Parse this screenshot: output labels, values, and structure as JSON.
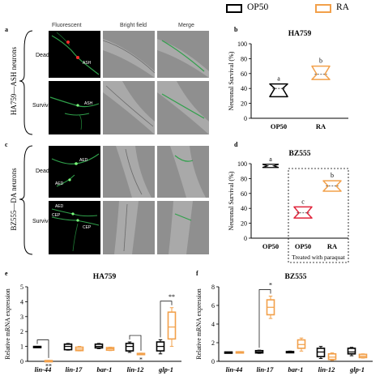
{
  "legend": [
    {
      "label": "OP50",
      "color": "#000000"
    },
    {
      "label": "RA",
      "color": "#f2a04a"
    }
  ],
  "panel_labels": {
    "a": "a",
    "b": "b",
    "c": "c",
    "d": "d",
    "e": "e",
    "f": "f"
  },
  "microscopy": {
    "columns": [
      "Fluorescent",
      "Bright field",
      "Merge"
    ],
    "panel_a": {
      "group_label": "HA759—ASH neurons",
      "rows": [
        "Dead",
        "Survival"
      ],
      "dead_marker": "ASH",
      "survival_marker": "ASH"
    },
    "panel_c": {
      "group_label": "BZ555—DA neurons",
      "rows": [
        "Dead",
        "Survival"
      ],
      "dead_markers": [
        "AED",
        "AED"
      ],
      "survival_markers": [
        "AED",
        "CEP",
        "CEP"
      ]
    }
  },
  "chart_data": [
    {
      "panel": "b",
      "type": "box",
      "title": "HA759",
      "categories": [
        "OP50",
        "RA"
      ],
      "ylabel": "Neuronal Survival (%)",
      "ylim": [
        0,
        100
      ],
      "yticks": [
        "0",
        "20",
        "40",
        "60",
        "80",
        "100"
      ],
      "boxes": [
        {
          "category": "OP50",
          "min": 29,
          "q1": 33,
          "median": 40,
          "q3": 46,
          "max": 46,
          "color": "#000000",
          "sig": "a"
        },
        {
          "category": "RA",
          "min": 52,
          "q1": 55,
          "median": 59,
          "q3": 65,
          "max": 70,
          "color": "#f2a04a",
          "sig": "b"
        }
      ]
    },
    {
      "panel": "d",
      "type": "box",
      "title": "BZ555",
      "categories": [
        "OP50",
        "OP50",
        "RA"
      ],
      "ylabel": "Neuronal Survival (%)",
      "ylim": [
        0,
        100
      ],
      "yticks": [
        "0",
        "20",
        "40",
        "60",
        "80",
        "100"
      ],
      "group_label": "Treated with paraquat",
      "boxes": [
        {
          "category": "OP50",
          "min": 95,
          "q1": 96,
          "median": 97,
          "q3": 98,
          "max": 99,
          "color": "#000000",
          "sig": "a"
        },
        {
          "category": "OP50",
          "min": 27,
          "q1": 30,
          "median": 34,
          "q3": 38,
          "max": 42,
          "color": "#e0243b",
          "sig": "c"
        },
        {
          "category": "RA",
          "min": 63,
          "q1": 66,
          "median": 70,
          "q3": 73,
          "max": 77,
          "color": "#f2a04a",
          "sig": "b"
        }
      ]
    },
    {
      "panel": "e",
      "type": "box",
      "title": "HA759",
      "categories": [
        "lin-44",
        "lin-17",
        "bar-1",
        "lin-12",
        "glp-1"
      ],
      "ylabel": "Relative mRNA expression",
      "ylim": [
        0,
        5
      ],
      "yticks": [
        "0",
        "1",
        "2",
        "3",
        "4",
        "5"
      ],
      "boxes": [
        {
          "category": "lin-44",
          "series": "OP50",
          "min": 1.0,
          "q1": 1.0,
          "median": 1.0,
          "q3": 1.0,
          "max": 1.0
        },
        {
          "category": "lin-44",
          "series": "RA",
          "min": 0.02,
          "q1": 0.03,
          "median": 0.04,
          "q3": 0.05,
          "max": 0.06
        },
        {
          "category": "lin-17",
          "series": "OP50",
          "min": 0.75,
          "q1": 0.78,
          "median": 1.0,
          "q3": 1.15,
          "max": 1.2
        },
        {
          "category": "lin-17",
          "series": "RA",
          "min": 0.7,
          "q1": 0.72,
          "median": 0.82,
          "q3": 0.95,
          "max": 1.0
        },
        {
          "category": "bar-1",
          "series": "OP50",
          "min": 0.85,
          "q1": 0.9,
          "median": 1.0,
          "q3": 1.15,
          "max": 1.2
        },
        {
          "category": "bar-1",
          "series": "RA",
          "min": 0.72,
          "q1": 0.75,
          "median": 0.85,
          "q3": 0.92,
          "max": 0.95
        },
        {
          "category": "lin-12",
          "series": "OP50",
          "min": 0.6,
          "q1": 0.7,
          "median": 1.0,
          "q3": 1.2,
          "max": 1.3
        },
        {
          "category": "lin-12",
          "series": "RA",
          "min": 0.45,
          "q1": 0.47,
          "median": 0.5,
          "q3": 0.53,
          "max": 0.55
        },
        {
          "category": "glp-1",
          "series": "OP50",
          "min": 0.5,
          "q1": 0.7,
          "median": 1.0,
          "q3": 1.3,
          "max": 1.45
        },
        {
          "category": "glp-1",
          "series": "RA",
          "min": 1.0,
          "q1": 1.5,
          "median": 2.3,
          "q3": 3.3,
          "max": 3.6
        }
      ],
      "significance": [
        {
          "category": "lin-44",
          "label": "**"
        },
        {
          "category": "lin-12",
          "label": "*"
        },
        {
          "category": "glp-1",
          "label": "**"
        }
      ]
    },
    {
      "panel": "f",
      "type": "box",
      "title": "BZ555",
      "categories": [
        "lin-44",
        "lin-17",
        "bar-1",
        "lin-12",
        "glp-1"
      ],
      "ylabel": "Relative mRNA expression",
      "ylim": [
        0,
        8
      ],
      "yticks": [
        "0",
        "2",
        "4",
        "6",
        "8"
      ],
      "boxes": [
        {
          "category": "lin-44",
          "series": "OP50",
          "min": 1.0,
          "q1": 1.0,
          "median": 1.0,
          "q3": 1.0,
          "max": 1.0
        },
        {
          "category": "lin-44",
          "series": "RA",
          "min": 0.95,
          "q1": 0.97,
          "median": 1.0,
          "q3": 1.02,
          "max": 1.05
        },
        {
          "category": "lin-17",
          "series": "OP50",
          "min": 0.85,
          "q1": 0.9,
          "median": 1.0,
          "q3": 1.15,
          "max": 1.2
        },
        {
          "category": "lin-17",
          "series": "RA",
          "min": 4.6,
          "q1": 5.0,
          "median": 5.8,
          "q3": 6.6,
          "max": 7.0
        },
        {
          "category": "bar-1",
          "series": "OP50",
          "min": 0.95,
          "q1": 0.97,
          "median": 1.0,
          "q3": 1.05,
          "max": 1.1
        },
        {
          "category": "bar-1",
          "series": "RA",
          "min": 1.1,
          "q1": 1.4,
          "median": 1.8,
          "q3": 2.3,
          "max": 2.5
        },
        {
          "category": "lin-12",
          "series": "OP50",
          "min": 0.3,
          "q1": 0.5,
          "median": 1.0,
          "q3": 1.4,
          "max": 1.6
        },
        {
          "category": "lin-12",
          "series": "RA",
          "min": 0.1,
          "q1": 0.2,
          "median": 0.45,
          "q3": 0.8,
          "max": 0.9
        },
        {
          "category": "glp-1",
          "series": "OP50",
          "min": 0.6,
          "q1": 0.8,
          "median": 1.0,
          "q3": 1.4,
          "max": 1.5
        },
        {
          "category": "glp-1",
          "series": "RA",
          "min": 0.35,
          "q1": 0.4,
          "median": 0.55,
          "q3": 0.75,
          "max": 0.8
        }
      ],
      "significance": [
        {
          "category": "lin-17",
          "label": "*"
        }
      ]
    }
  ]
}
